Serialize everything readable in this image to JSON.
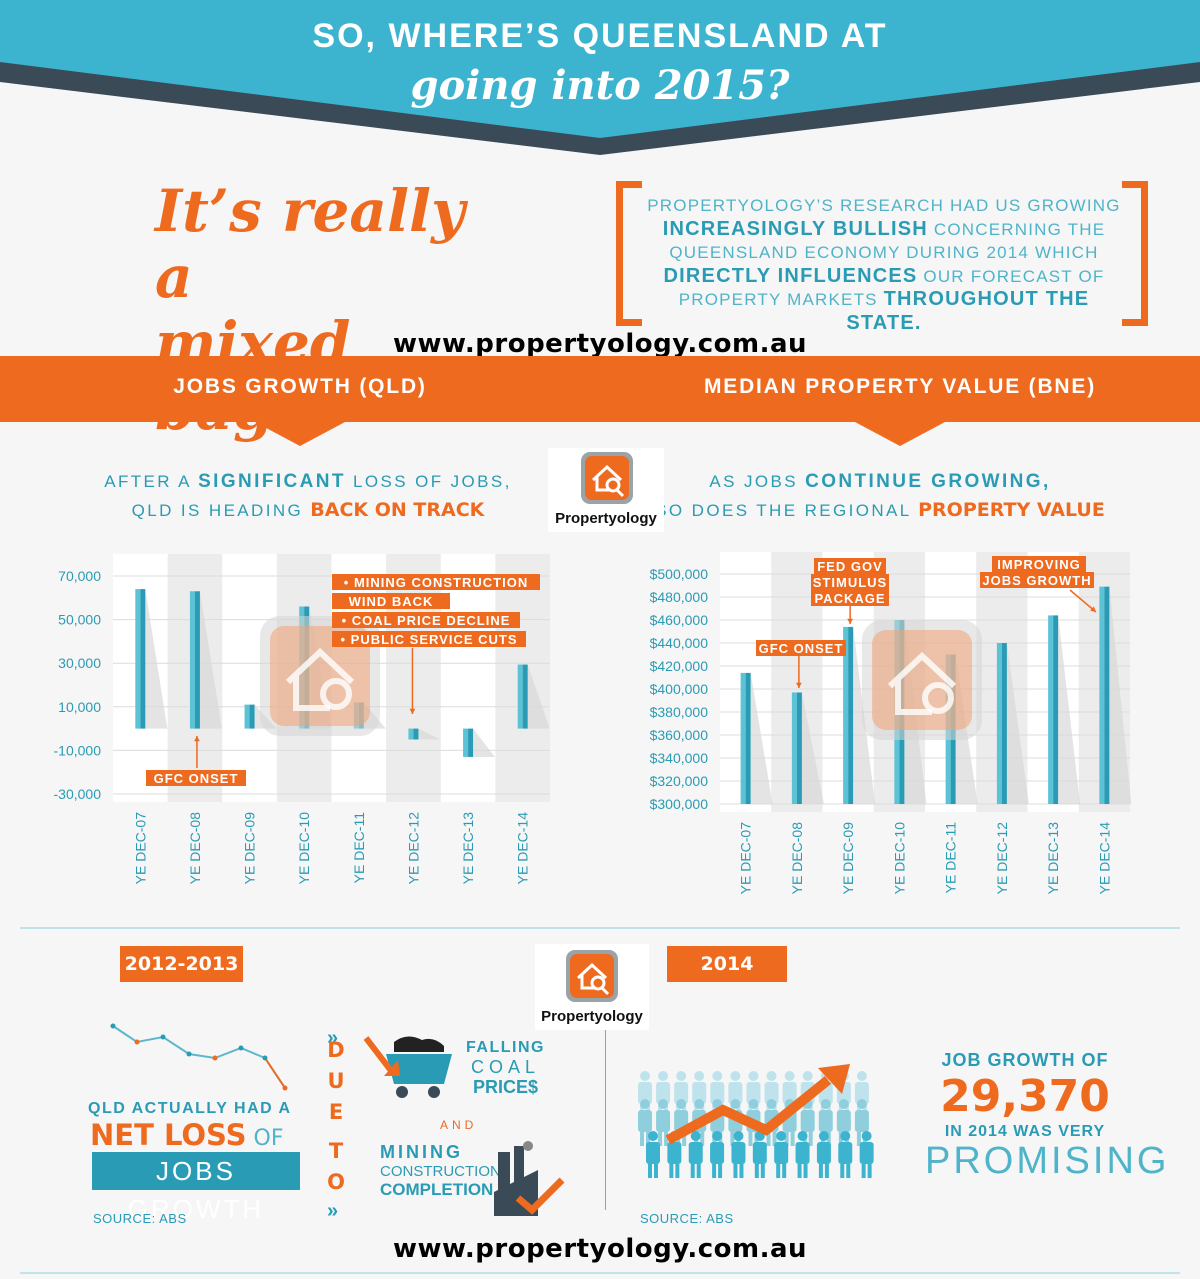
{
  "header": {
    "title_line1": "SO, WHERE’S QUEENSLAND AT",
    "title_line2": "going into 2015?"
  },
  "intro": {
    "headline_line1": "It’s really a",
    "headline_line2": "mixed bag...",
    "research": {
      "line1": "PROPERTYOLOGY’S RESEARCH HAD US GROWING",
      "line2_bold": "INCREASINGLY BULLISH",
      "line2_rest": " CONCERNING THE",
      "line3": "QUEENSLAND ECONOMY DURING 2014 WHICH",
      "line4_bold": "DIRECTLY INFLUENCES",
      "line4_rest": " OUR FORECAST OF",
      "line5_start": "PROPERTY MARKETS ",
      "line5_bold": "THROUGHOUT THE STATE."
    }
  },
  "website": "www.propertyology.com.au",
  "band": {
    "left_title": "JOBS GROWTH (QLD)",
    "right_title": "MEDIAN PROPERTY VALUE (BNE)"
  },
  "left_sub": {
    "l1a": "AFTER A ",
    "l1b": "SIGNIFICANT",
    "l1c": " LOSS OF JOBS,",
    "l2a": "QLD IS HEADING ",
    "l2b": "BACK ON TRACK"
  },
  "right_sub": {
    "l1a": "AS JOBS ",
    "l1b": "CONTINUE GROWING,",
    "l2a": "SO DOES THE REGIONAL ",
    "l2b": "PROPERTY VALUE"
  },
  "logo": {
    "text": "Propertyology",
    "icon": "house-magnifier-icon"
  },
  "colors": {
    "teal": "#2a9bb4",
    "orange": "#ee6a1f",
    "header_teal": "#3cb4d0",
    "dark": "#3a4b57"
  },
  "chart_data": [
    {
      "type": "bar",
      "title": "JOBS GROWTH (QLD)",
      "categories": [
        "YE DEC-07",
        "YE DEC-08",
        "YE DEC-09",
        "YE DEC-10",
        "YE DEC-11",
        "YE DEC-12",
        "YE DEC-13",
        "YE DEC-14"
      ],
      "values": [
        64000,
        63000,
        11000,
        56000,
        12000,
        -5000,
        -13000,
        29370
      ],
      "ytick_labels": [
        "70,000",
        "50,000",
        "30,000",
        "10,000",
        "-10,000",
        "-30,000"
      ],
      "ylim": [
        -30000,
        70000
      ],
      "grid": true,
      "annotations": [
        {
          "text": "GFC ONSET",
          "category": "YE DEC-08"
        },
        {
          "text": "• MINING CONSTRUCTION",
          "category": "YE DEC-12"
        },
        {
          "text": "WIND BACK",
          "category": "YE DEC-12"
        },
        {
          "text": "• COAL PRICE DECLINE",
          "category": "YE DEC-12"
        },
        {
          "text": "• PUBLIC SERVICE CUTS",
          "category": "YE DEC-12"
        }
      ]
    },
    {
      "type": "bar",
      "title": "MEDIAN PROPERTY VALUE (BNE)",
      "categories": [
        "YE DEC-07",
        "YE DEC-08",
        "YE DEC-09",
        "YE DEC-10",
        "YE DEC-11",
        "YE DEC-12",
        "YE DEC-13",
        "YE DEC-14"
      ],
      "values": [
        414000,
        397000,
        454000,
        460000,
        430000,
        440000,
        464000,
        489000
      ],
      "ytick_labels": [
        "$500,000",
        "$480,000",
        "$460,000",
        "$440,000",
        "$420,000",
        "$400,000",
        "$380,000",
        "$360,000",
        "$340,000",
        "$320,000",
        "$300,000"
      ],
      "ylim": [
        300000,
        500000
      ],
      "grid": true,
      "annotations": [
        {
          "text": "GFC ONSET",
          "category": "YE DEC-08"
        },
        {
          "text": "FED GOV",
          "category": "YE DEC-09"
        },
        {
          "text": "STIMULUS",
          "category": "YE DEC-09"
        },
        {
          "text": "PACKAGE",
          "category": "YE DEC-09"
        },
        {
          "text": "IMPROVING",
          "category": "YE DEC-14"
        },
        {
          "text": "JOBS GROWTH",
          "category": "YE DEC-14"
        }
      ]
    }
  ],
  "bottom": {
    "left_year": "2012-2013",
    "right_year": "2014",
    "qld_had": "QLD ACTUALLY HAD A",
    "net_loss": "NET LOSS",
    "of": " OF",
    "jobs_growth": "JOBS GROWTH",
    "source": "SOURCE: ABS",
    "due_to": [
      "D",
      "U",
      "E",
      "T",
      "O"
    ],
    "falling_a": "FALLING",
    "falling_b": "COAL",
    "falling_c": "PRICE$",
    "and": "AND",
    "mining_a": "MINING",
    "mining_b": "CONSTRUCTION",
    "mining_c": "COMPLETION",
    "job_growth_of": "JOB GROWTH OF",
    "job_growth_number": "29,370",
    "in_2014": "IN 2014 WAS VERY",
    "promising": "PROMISING",
    "left_icon": "declining-line-icon",
    "coal_icon": "coal-cart-icon",
    "factory_icon": "factory-check-icon",
    "people_icon": "crowd-growth-arrow-icon"
  }
}
